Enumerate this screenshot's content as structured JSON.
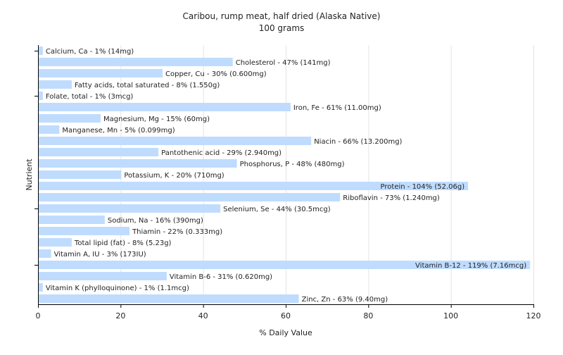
{
  "chart_data": {
    "type": "bar",
    "orientation": "horizontal",
    "title": "Caribou, rump meat, half dried (Alaska Native)",
    "subtitle": "100 grams",
    "xlabel": "% Daily Value",
    "ylabel": "Nutrient",
    "xlim": [
      0,
      120
    ],
    "xticks": [
      0,
      20,
      40,
      60,
      80,
      100,
      120
    ],
    "grid": "vertical",
    "bar_color": "#bfdcff",
    "categories": [
      "Calcium, Ca",
      "Cholesterol",
      "Copper, Cu",
      "Fatty acids, total saturated",
      "Folate, total",
      "Iron, Fe",
      "Magnesium, Mg",
      "Manganese, Mn",
      "Niacin",
      "Pantothenic acid",
      "Phosphorus, P",
      "Potassium, K",
      "Protein",
      "Riboflavin",
      "Selenium, Se",
      "Sodium, Na",
      "Thiamin",
      "Total lipid (fat)",
      "Vitamin A, IU",
      "Vitamin B-12",
      "Vitamin B-6",
      "Vitamin K (phylloquinone)",
      "Zinc, Zn"
    ],
    "values": [
      1,
      47,
      30,
      8,
      1,
      61,
      15,
      5,
      66,
      29,
      48,
      20,
      104,
      73,
      44,
      16,
      22,
      8,
      3,
      119,
      31,
      1,
      63
    ],
    "labels": [
      "Calcium, Ca - 1% (14mg)",
      "Cholesterol - 47% (141mg)",
      "Copper, Cu - 30% (0.600mg)",
      "Fatty acids, total saturated - 8% (1.550g)",
      "Folate, total - 1% (3mcg)",
      "Iron, Fe - 61% (11.00mg)",
      "Magnesium, Mg - 15% (60mg)",
      "Manganese, Mn - 5% (0.099mg)",
      "Niacin - 66% (13.200mg)",
      "Pantothenic acid - 29% (2.940mg)",
      "Phosphorus, P - 48% (480mg)",
      "Potassium, K - 20% (710mg)",
      "Protein - 104% (52.06g)",
      "Riboflavin - 73% (1.240mg)",
      "Selenium, Se - 44% (30.5mcg)",
      "Sodium, Na - 16% (390mg)",
      "Thiamin - 22% (0.333mg)",
      "Total lipid (fat) - 8% (5.23g)",
      "Vitamin A, IU - 3% (173IU)",
      "Vitamin B-12 - 119% (7.16mcg)",
      "Vitamin B-6 - 31% (0.620mg)",
      "Vitamin K (phylloquinone) - 1% (1.1mcg)",
      "Zinc, Zn - 63% (9.40mg)"
    ]
  }
}
